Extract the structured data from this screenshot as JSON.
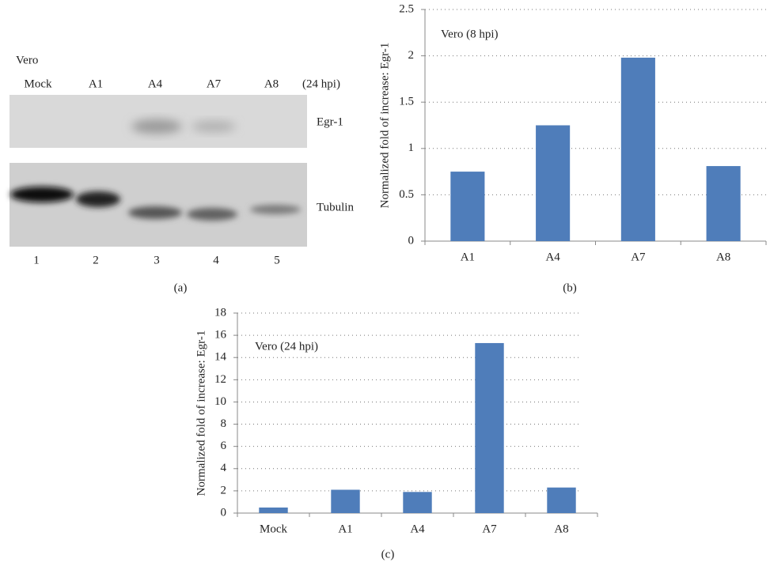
{
  "blot": {
    "cell_line": "Vero",
    "lanes": [
      "Mock",
      "A1",
      "A4",
      "A7",
      "A8"
    ],
    "timepoint": "(24 hpi)",
    "bands": [
      "Egr-1",
      "Tubulin"
    ],
    "lane_numbers": [
      "1",
      "2",
      "3",
      "4",
      "5"
    ],
    "panel_label": "(a)"
  },
  "chart_data": [
    {
      "type": "bar",
      "annotation": "Vero (8 hpi)",
      "y_label": "Normalized fold of increase: Egr-1",
      "categories": [
        "A1",
        "A4",
        "A7",
        "A8"
      ],
      "values": [
        0.75,
        1.25,
        1.98,
        0.81
      ],
      "color": "#4f7dba",
      "ylim": [
        0,
        2.5
      ],
      "yticks": [
        0,
        0.5,
        1,
        1.5,
        2,
        2.5
      ],
      "grid": true,
      "panel_label": "(b)"
    },
    {
      "type": "bar",
      "annotation": "Vero (24 hpi)",
      "y_label": "Normalized fold of increase: Egr-1",
      "categories": [
        "Mock",
        "A1",
        "A4",
        "A7",
        "A8"
      ],
      "values": [
        0.5,
        2.1,
        1.9,
        15.3,
        2.3
      ],
      "color": "#4f7dba",
      "ylim": [
        0,
        18
      ],
      "yticks": [
        0,
        2,
        4,
        6,
        8,
        10,
        12,
        14,
        16,
        18
      ],
      "grid": true,
      "panel_label": "(c)"
    }
  ]
}
